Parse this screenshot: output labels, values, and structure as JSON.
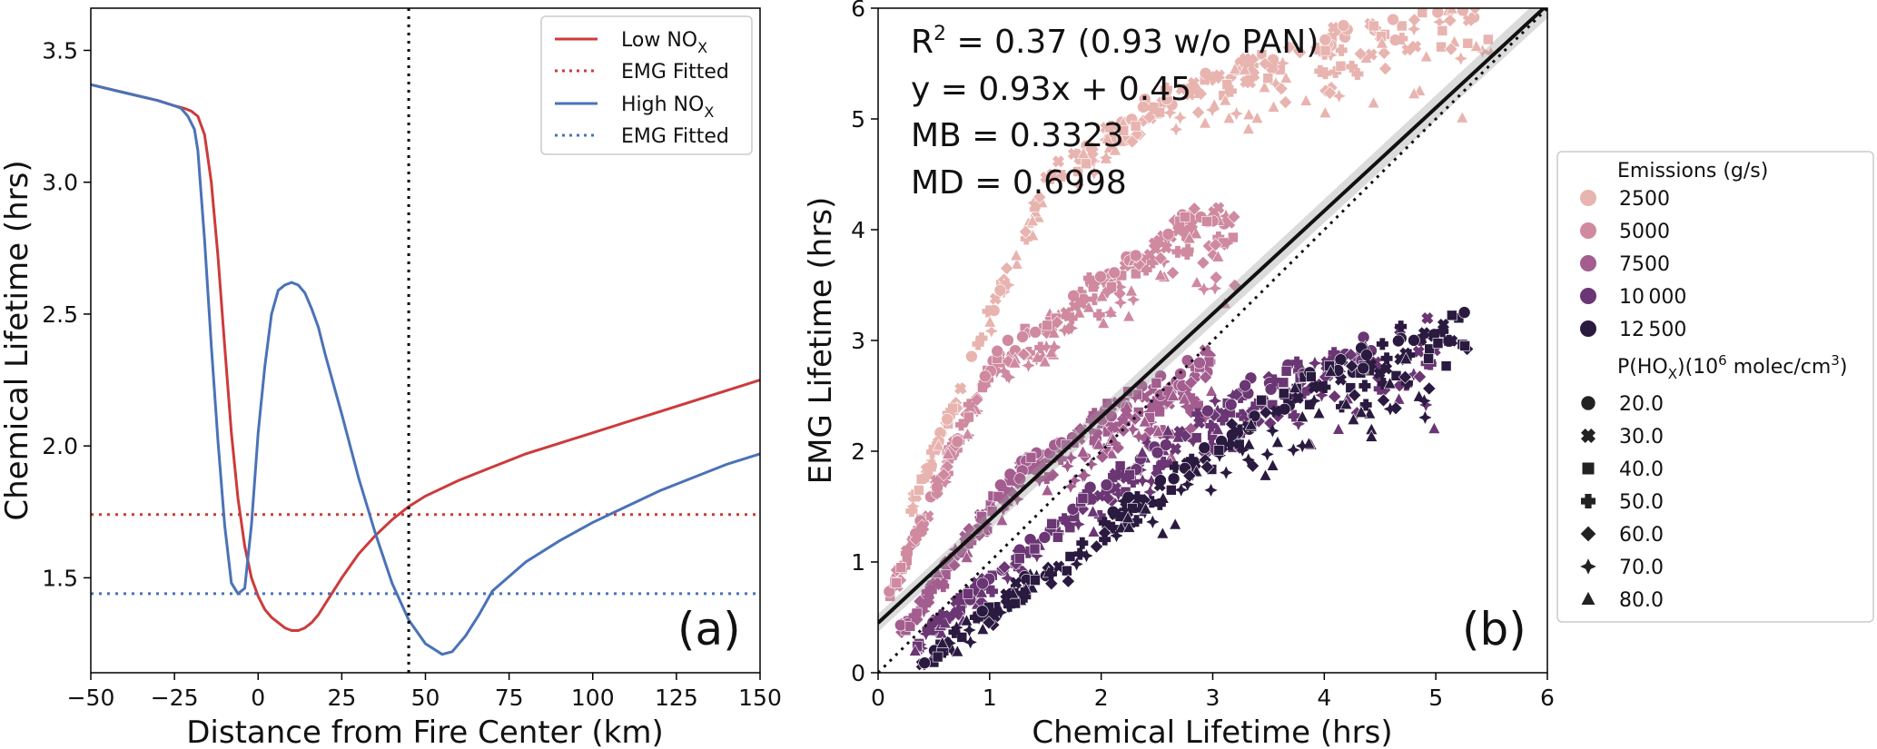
{
  "chart_data": [
    {
      "type": "line",
      "panel_label": "(a)",
      "xlabel": "Distance from Fire Center (km)",
      "ylabel": "Chemical Lifetime (hrs)",
      "xlim": [
        -50,
        150
      ],
      "ylim": [
        1.14,
        3.66
      ],
      "xticks": [
        -50,
        -25,
        0,
        25,
        50,
        75,
        100,
        125,
        150
      ],
      "xtick_labels": [
        "−50",
        "−25",
        "0",
        "25",
        "50",
        "75",
        "100",
        "125",
        "150"
      ],
      "yticks": [
        1.5,
        2.0,
        2.5,
        3.0,
        3.5
      ],
      "ytick_labels": [
        "1.5",
        "2.0",
        "2.5",
        "3.0",
        "3.5"
      ],
      "grid": false,
      "legend_position": "top-right",
      "vline": {
        "x": 45,
        "style": "dotted",
        "color": "#000000"
      },
      "series": [
        {
          "name": "Low NOx",
          "name_base": "Low NO",
          "name_sub": "X",
          "color": "#cc3b3b",
          "style": "solid",
          "x": [
            -50,
            -40,
            -30,
            -25,
            -22,
            -20,
            -18,
            -16,
            -14,
            -12,
            -10,
            -8,
            -6,
            -4,
            -2,
            0,
            2,
            4,
            6,
            8,
            10,
            12,
            14,
            16,
            18,
            20,
            22,
            25,
            30,
            35,
            40,
            45,
            50,
            60,
            70,
            80,
            90,
            100,
            110,
            120,
            130,
            140,
            150
          ],
          "y": [
            3.37,
            3.34,
            3.31,
            3.29,
            3.28,
            3.27,
            3.25,
            3.18,
            3.0,
            2.72,
            2.38,
            2.05,
            1.8,
            1.62,
            1.5,
            1.43,
            1.38,
            1.35,
            1.33,
            1.31,
            1.3,
            1.3,
            1.31,
            1.33,
            1.36,
            1.4,
            1.44,
            1.5,
            1.59,
            1.66,
            1.72,
            1.77,
            1.81,
            1.87,
            1.92,
            1.97,
            2.01,
            2.05,
            2.09,
            2.13,
            2.17,
            2.21,
            2.25
          ]
        },
        {
          "name": "EMG Fitted",
          "name_base": "EMG Fitted",
          "name_sub": "",
          "color": "#cc3b3b",
          "style": "dotted",
          "x": [
            -50,
            150
          ],
          "y": [
            1.74,
            1.74
          ]
        },
        {
          "name": "High NOx",
          "name_base": "High NO",
          "name_sub": "X",
          "color": "#4a72b8",
          "style": "solid",
          "x": [
            -50,
            -40,
            -30,
            -25,
            -23,
            -21,
            -19,
            -18,
            -16,
            -14,
            -12,
            -10,
            -8,
            -6,
            -4,
            -2,
            0,
            2,
            4,
            6,
            8,
            10,
            12,
            14,
            16,
            18,
            20,
            25,
            30,
            35,
            40,
            45,
            50,
            55,
            58,
            62,
            66,
            70,
            80,
            90,
            100,
            110,
            120,
            130,
            140,
            150
          ],
          "y": [
            3.37,
            3.34,
            3.31,
            3.29,
            3.28,
            3.25,
            3.2,
            3.12,
            2.78,
            2.38,
            2.02,
            1.7,
            1.48,
            1.44,
            1.46,
            1.7,
            2.05,
            2.3,
            2.5,
            2.59,
            2.61,
            2.62,
            2.61,
            2.58,
            2.52,
            2.45,
            2.35,
            2.12,
            1.88,
            1.67,
            1.48,
            1.34,
            1.25,
            1.21,
            1.22,
            1.28,
            1.36,
            1.45,
            1.56,
            1.64,
            1.71,
            1.77,
            1.83,
            1.88,
            1.93,
            1.97
          ]
        },
        {
          "name": "EMG Fitted",
          "name_base": "EMG Fitted",
          "name_sub": "",
          "color": "#4a72b8",
          "style": "dotted",
          "x": [
            -50,
            150
          ],
          "y": [
            1.44,
            1.44
          ]
        }
      ]
    },
    {
      "type": "scatter",
      "panel_label": "(b)",
      "xlabel": "Chemical Lifetime (hrs)",
      "ylabel": "EMG Lifetime (hrs)",
      "xlim": [
        0,
        6
      ],
      "ylim": [
        0,
        6
      ],
      "xticks": [
        0,
        1,
        2,
        3,
        4,
        5,
        6
      ],
      "xtick_labels": [
        "0",
        "1",
        "2",
        "3",
        "4",
        "5",
        "6"
      ],
      "yticks": [
        0,
        1,
        2,
        3,
        4,
        5,
        6
      ],
      "ytick_labels": [
        "0",
        "1",
        "2",
        "3",
        "4",
        "5",
        "6"
      ],
      "grid": false,
      "legend_position": "outside-right",
      "annotations": {
        "r2_base": "R",
        "r2_sup": "2",
        "r2_rest": " = 0.37 (0.93 w/o PAN)",
        "fit": "y = 0.93x + 0.45",
        "mb": "MB = 0.3323",
        "md": "MD = 0.6998"
      },
      "fit_line": {
        "slope": 0.93,
        "intercept": 0.45,
        "color": "#111111",
        "style": "solid"
      },
      "identity_line": {
        "slope": 1,
        "intercept": 0,
        "color": "#111111",
        "style": "dotted"
      },
      "legend": {
        "hue_title": "Emissions (g/s)",
        "hue": [
          {
            "label": "2500",
            "color": "#e8b4b0"
          },
          {
            "label": "5000",
            "color": "#cf8aa0"
          },
          {
            "label": "7500",
            "color": "#a35d8f"
          },
          {
            "label": "10 000",
            "color": "#6a3673"
          },
          {
            "label": "12 500",
            "color": "#2b1a40"
          }
        ],
        "style_title_base": "P(HO",
        "style_title_sub": "X",
        "style_title_mid": ")(10",
        "style_title_sup1": "6",
        "style_title_end": " molec/cm",
        "style_title_sup2": "3",
        "style_title_close": ")",
        "styles": [
          {
            "label": "20.0",
            "marker": "circle"
          },
          {
            "label": "30.0",
            "marker": "x"
          },
          {
            "label": "40.0",
            "marker": "square"
          },
          {
            "label": "50.0",
            "marker": "plus"
          },
          {
            "label": "60.0",
            "marker": "diamond"
          },
          {
            "label": "70.0",
            "marker": "star4"
          },
          {
            "label": "80.0",
            "marker": "triangle"
          }
        ]
      },
      "point_groups": [
        {
          "emission": "12 500",
          "color": "#2b1a40",
          "trend": [
            [
              0.3,
              0.05
            ],
            [
              1.5,
              0.95
            ],
            [
              2.5,
              1.75
            ],
            [
              3.5,
              2.45
            ],
            [
              4.5,
              3.0
            ],
            [
              5.3,
              3.28
            ]
          ]
        },
        {
          "emission": "10 000",
          "color": "#6a3673",
          "trend": [
            [
              0.3,
              0.25
            ],
            [
              1.5,
              1.3
            ],
            [
              2.5,
              2.1
            ],
            [
              3.5,
              2.7
            ],
            [
              4.5,
              3.05
            ],
            [
              5.0,
              3.25
            ]
          ]
        },
        {
          "emission": "7500",
          "color": "#a35d8f",
          "trend": [
            [
              0.2,
              0.4
            ],
            [
              1.2,
              1.8
            ],
            [
              2.2,
              2.5
            ],
            [
              3.0,
              2.9
            ]
          ]
        },
        {
          "emission": "5000",
          "color": "#cf8aa0",
          "trend": [
            [
              0.1,
              0.7
            ],
            [
              1.0,
              2.8
            ],
            [
              2.0,
              3.6
            ],
            [
              2.8,
              4.2
            ],
            [
              3.2,
              4.1
            ]
          ]
        },
        {
          "emission": "2500",
          "color": "#e8b4b0",
          "trend": [
            [
              0.3,
              1.5
            ],
            [
              1.5,
              4.5
            ],
            [
              2.5,
              5.2
            ],
            [
              3.5,
              5.6
            ],
            [
              4.5,
              5.9
            ],
            [
              5.5,
              6.0
            ]
          ]
        }
      ]
    }
  ]
}
